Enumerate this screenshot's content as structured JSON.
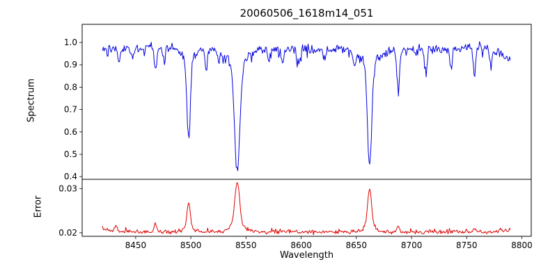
{
  "figure": {
    "title": "20060506_1618m14_051",
    "background_color": "#ffffff"
  },
  "chart_data": {
    "type": "line",
    "title": "20060506_1618m14_051",
    "xlabel": "Wavelength",
    "x_data_range": [
      8420,
      8790
    ],
    "xlim": [
      8401.5,
      8808.5
    ],
    "x_ticks": [
      8450,
      8500,
      8550,
      8600,
      8650,
      8700,
      8750,
      8800
    ],
    "grid": false,
    "legend": null,
    "panels": [
      {
        "name": "spectrum",
        "ylabel": "Spectrum",
        "line_color": "#0000dd",
        "y_ticks": [
          0.4,
          0.5,
          0.6,
          0.7,
          0.8,
          0.9,
          1.0
        ],
        "ylim": [
          0.388,
          1.081
        ],
        "continuum_level": 0.972,
        "noise_sigma": 0.011
      },
      {
        "name": "error",
        "ylabel": "Error",
        "line_color": "#dd0000",
        "y_ticks": [
          0.02,
          0.03
        ],
        "ylim": [
          0.0192,
          0.0321
        ],
        "baseline": 0.0202,
        "noise_sigma": 0.00022
      }
    ],
    "absorption_lines_major": [
      {
        "wavelength": 8498,
        "spectrum_min": 0.57,
        "error_peak": 0.027,
        "width": 1.6
      },
      {
        "wavelength": 8542,
        "spectrum_min": 0.42,
        "error_peak": 0.0315,
        "width": 2.4
      },
      {
        "wavelength": 8662,
        "spectrum_min": 0.46,
        "error_peak": 0.03,
        "width": 1.9
      }
    ],
    "absorption_lines_minor": [
      {
        "wavelength": 8435,
        "depth": 0.06
      },
      {
        "wavelength": 8447,
        "depth": 0.05
      },
      {
        "wavelength": 8468,
        "depth": 0.09
      },
      {
        "wavelength": 8476,
        "depth": 0.06
      },
      {
        "wavelength": 8514,
        "depth": 0.1
      },
      {
        "wavelength": 8525,
        "depth": 0.05
      },
      {
        "wavelength": 8571,
        "depth": 0.05
      },
      {
        "wavelength": 8583,
        "depth": 0.06
      },
      {
        "wavelength": 8598,
        "depth": 0.06
      },
      {
        "wavelength": 8621,
        "depth": 0.05
      },
      {
        "wavelength": 8648,
        "depth": 0.06
      },
      {
        "wavelength": 8688,
        "depth": 0.19
      },
      {
        "wavelength": 8713,
        "depth": 0.11
      },
      {
        "wavelength": 8736,
        "depth": 0.08
      },
      {
        "wavelength": 8757,
        "depth": 0.12
      },
      {
        "wavelength": 8772,
        "depth": 0.07
      }
    ],
    "error_bumps": [
      {
        "wavelength": 8432,
        "height": 0.0012
      },
      {
        "wavelength": 8468,
        "height": 0.0018
      },
      {
        "wavelength": 8688,
        "height": 0.001
      },
      {
        "wavelength": 8757,
        "height": 0.0008
      }
    ]
  }
}
